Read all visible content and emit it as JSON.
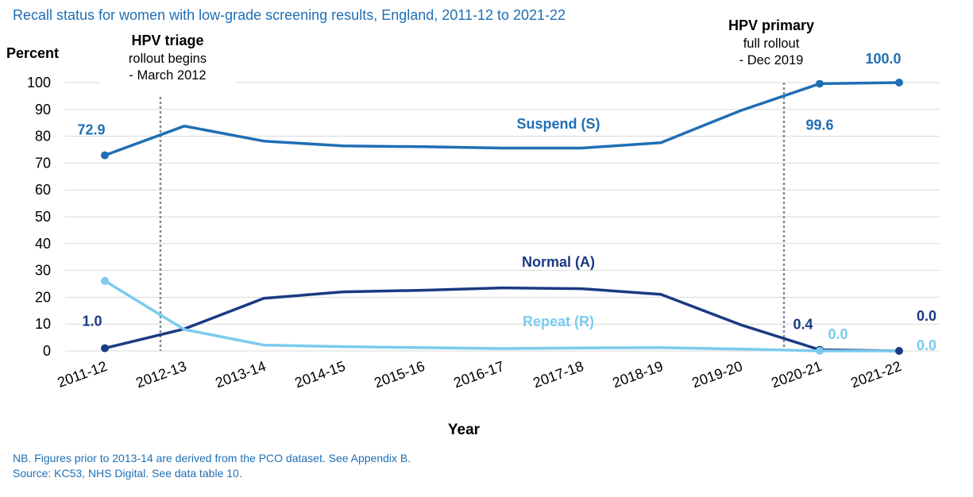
{
  "title": "Recall status for women with low-grade screening results, England,  2011-12 to 2021-22",
  "footnote": "NB. Figures prior to 2013-14 are derived from the PCO dataset. See Appendix B.",
  "source": "Source: KC53, NHS Digital. See data table 10.",
  "chart_data": {
    "type": "line",
    "title": "Recall status for women with low-grade screening results, England,  2011-12 to 2021-22",
    "xlabel": "Year",
    "ylabel": "Percent",
    "ylim": [
      0,
      100
    ],
    "yticks": [
      0,
      10,
      20,
      30,
      40,
      50,
      60,
      70,
      80,
      90,
      100
    ],
    "grid": true,
    "categories": [
      "2011-12",
      "2012-13",
      "2013-14",
      "2014-15",
      "2015-16",
      "2016-17",
      "2017-18",
      "2018-19",
      "2019-20",
      "2020-21",
      "2021-22"
    ],
    "series": [
      {
        "name": "Suspend (S)",
        "color": "#1f6fb5",
        "values": [
          72.9,
          83.8,
          78.2,
          76.4,
          76.1,
          75.6,
          75.6,
          77.6,
          89.5,
          99.6,
          100.0
        ],
        "data_labels": [
          {
            "index": 0,
            "text": "72.9"
          },
          {
            "index": 9,
            "text": "99.6"
          },
          {
            "index": 10,
            "text": "100.0"
          }
        ]
      },
      {
        "name": "Normal (A)",
        "color": "#1a3a82",
        "values": [
          1.0,
          8.2,
          19.6,
          22.0,
          22.6,
          23.5,
          23.2,
          21.1,
          9.8,
          0.4,
          0.0
        ],
        "data_labels": [
          {
            "index": 0,
            "text": "1.0"
          },
          {
            "index": 9,
            "text": "0.4"
          },
          {
            "index": 10,
            "text": "0.0"
          }
        ]
      },
      {
        "name": "Repeat (R)",
        "color": "#7ccbee",
        "values": [
          26.1,
          8.0,
          2.2,
          1.6,
          1.2,
          0.9,
          1.1,
          1.2,
          0.7,
          0.0,
          0.0
        ],
        "data_labels": [
          {
            "index": 9,
            "text": "0.0"
          },
          {
            "index": 10,
            "text": "0.0"
          }
        ]
      }
    ],
    "annotations": [
      {
        "bold": "HPV triage",
        "lines": [
          "rollout begins",
          "- March 2012"
        ]
      },
      {
        "bold": "HPV primary",
        "lines": [
          "full rollout",
          "- Dec 2019"
        ]
      }
    ]
  }
}
